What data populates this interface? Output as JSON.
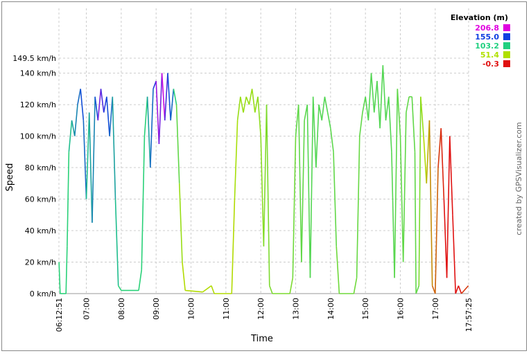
{
  "chart_data": {
    "type": "line",
    "x_label": "Time",
    "y_label": "Speed",
    "credit": "created by GPSVisualizer.com",
    "legend_title": "Elevation (m)",
    "legend": [
      {
        "value": 206.8,
        "label": "206.8",
        "color": "#e000e0"
      },
      {
        "value": 155,
        "label": "155.0",
        "color": "#1040e0"
      },
      {
        "value": 103.2,
        "label": "103.2",
        "color": "#20d080"
      },
      {
        "value": 51.4,
        "label": "51.4",
        "color": "#b0e000"
      },
      {
        "value": -0.3,
        "label": "-0.3",
        "color": "#e01010"
      }
    ],
    "xlim": [
      "06:12:51",
      "17:57:25"
    ],
    "xticks": [
      "06:12:51",
      "07:00",
      "08:00",
      "09:00",
      "10:00",
      "11:00",
      "12:00",
      "13:00",
      "14:00",
      "15:00",
      "16:00",
      "17:00",
      "17:57:25"
    ],
    "ylim": [
      0,
      149.5
    ],
    "yticks": [
      {
        "value": 0,
        "label": "0 km/h"
      },
      {
        "value": 20,
        "label": "20 km/h"
      },
      {
        "value": 40,
        "label": "40 km/h"
      },
      {
        "value": 60,
        "label": "60 km/h"
      },
      {
        "value": 80,
        "label": "80 km/h"
      },
      {
        "value": 100,
        "label": "100 km/h"
      },
      {
        "value": 120,
        "label": "120 km/h"
      },
      {
        "value": 140,
        "label": "140 km/h"
      },
      {
        "value": 149.5,
        "label": "149.5 km/h"
      }
    ],
    "grid": true,
    "x": [
      "06:13",
      "06:15",
      "06:25",
      "06:27",
      "06:30",
      "06:35",
      "06:40",
      "06:45",
      "06:50",
      "06:55",
      "07:00",
      "07:05",
      "07:10",
      "07:15",
      "07:20",
      "07:25",
      "07:30",
      "07:35",
      "07:40",
      "07:45",
      "07:50",
      "07:55",
      "08:00",
      "08:30",
      "08:35",
      "08:40",
      "08:45",
      "08:50",
      "08:55",
      "09:00",
      "09:05",
      "09:10",
      "09:15",
      "09:20",
      "09:25",
      "09:30",
      "09:35",
      "09:40",
      "09:45",
      "09:50",
      "10:20",
      "10:35",
      "10:40",
      "11:10",
      "11:15",
      "11:20",
      "11:25",
      "11:30",
      "11:35",
      "11:40",
      "11:45",
      "11:50",
      "11:55",
      "12:00",
      "12:05",
      "12:10",
      "12:15",
      "12:20",
      "12:50",
      "12:55",
      "13:00",
      "13:05",
      "13:10",
      "13:15",
      "13:20",
      "13:25",
      "13:30",
      "13:35",
      "13:40",
      "13:45",
      "13:50",
      "13:55",
      "14:00",
      "14:05",
      "14:10",
      "14:15",
      "14:40",
      "14:45",
      "14:50",
      "14:55",
      "15:00",
      "15:05",
      "15:10",
      "15:15",
      "15:20",
      "15:25",
      "15:30",
      "15:35",
      "15:40",
      "15:45",
      "15:50",
      "15:55",
      "16:00",
      "16:05",
      "16:10",
      "16:15",
      "16:20",
      "16:25",
      "16:27",
      "16:32",
      "16:35",
      "16:40",
      "16:45",
      "16:50",
      "16:55",
      "17:00",
      "17:05",
      "17:10",
      "17:15",
      "17:20",
      "17:25",
      "17:30",
      "17:35",
      "17:40",
      "17:45",
      "17:57"
    ],
    "values": [
      20,
      0,
      0,
      30,
      90,
      110,
      100,
      120,
      130,
      110,
      60,
      115,
      45,
      125,
      110,
      130,
      115,
      125,
      100,
      125,
      60,
      5,
      2,
      2,
      15,
      100,
      125,
      80,
      130,
      135,
      95,
      140,
      110,
      140,
      110,
      130,
      120,
      70,
      20,
      2,
      1,
      5,
      0,
      0,
      60,
      110,
      125,
      115,
      125,
      120,
      130,
      115,
      125,
      100,
      30,
      120,
      5,
      0,
      0,
      10,
      100,
      120,
      20,
      110,
      120,
      10,
      125,
      80,
      120,
      110,
      125,
      115,
      105,
      90,
      30,
      0,
      0,
      10,
      100,
      115,
      125,
      110,
      140,
      115,
      135,
      105,
      145,
      110,
      125,
      90,
      10,
      130,
      100,
      20,
      115,
      125,
      125,
      90,
      0,
      5,
      125,
      100,
      70,
      110,
      5,
      0,
      80,
      105,
      60,
      10,
      100,
      50,
      0,
      5,
      0,
      5
    ],
    "elevation": [
      100,
      100,
      100,
      100,
      110,
      120,
      130,
      140,
      150,
      140,
      110,
      120,
      130,
      150,
      180,
      170,
      160,
      150,
      140,
      120,
      110,
      100,
      100,
      100,
      100,
      100,
      120,
      140,
      160,
      190,
      180,
      200,
      170,
      150,
      140,
      100,
      80,
      60,
      50,
      50,
      50,
      50,
      50,
      50,
      55,
      60,
      60,
      60,
      60,
      60,
      60,
      62,
      64,
      65,
      68,
      70,
      70,
      70,
      70,
      75,
      80,
      80,
      80,
      82,
      84,
      85,
      85,
      85,
      85,
      85,
      85,
      84,
      82,
      80,
      75,
      75,
      75,
      78,
      80,
      82,
      84,
      85,
      85,
      85,
      85,
      85,
      85,
      85,
      85,
      84,
      82,
      80,
      80,
      80,
      80,
      80,
      80,
      80,
      80,
      70,
      60,
      50,
      40,
      30,
      20,
      20,
      10,
      5,
      0,
      0,
      0,
      0,
      0,
      0,
      10,
      30
    ]
  }
}
